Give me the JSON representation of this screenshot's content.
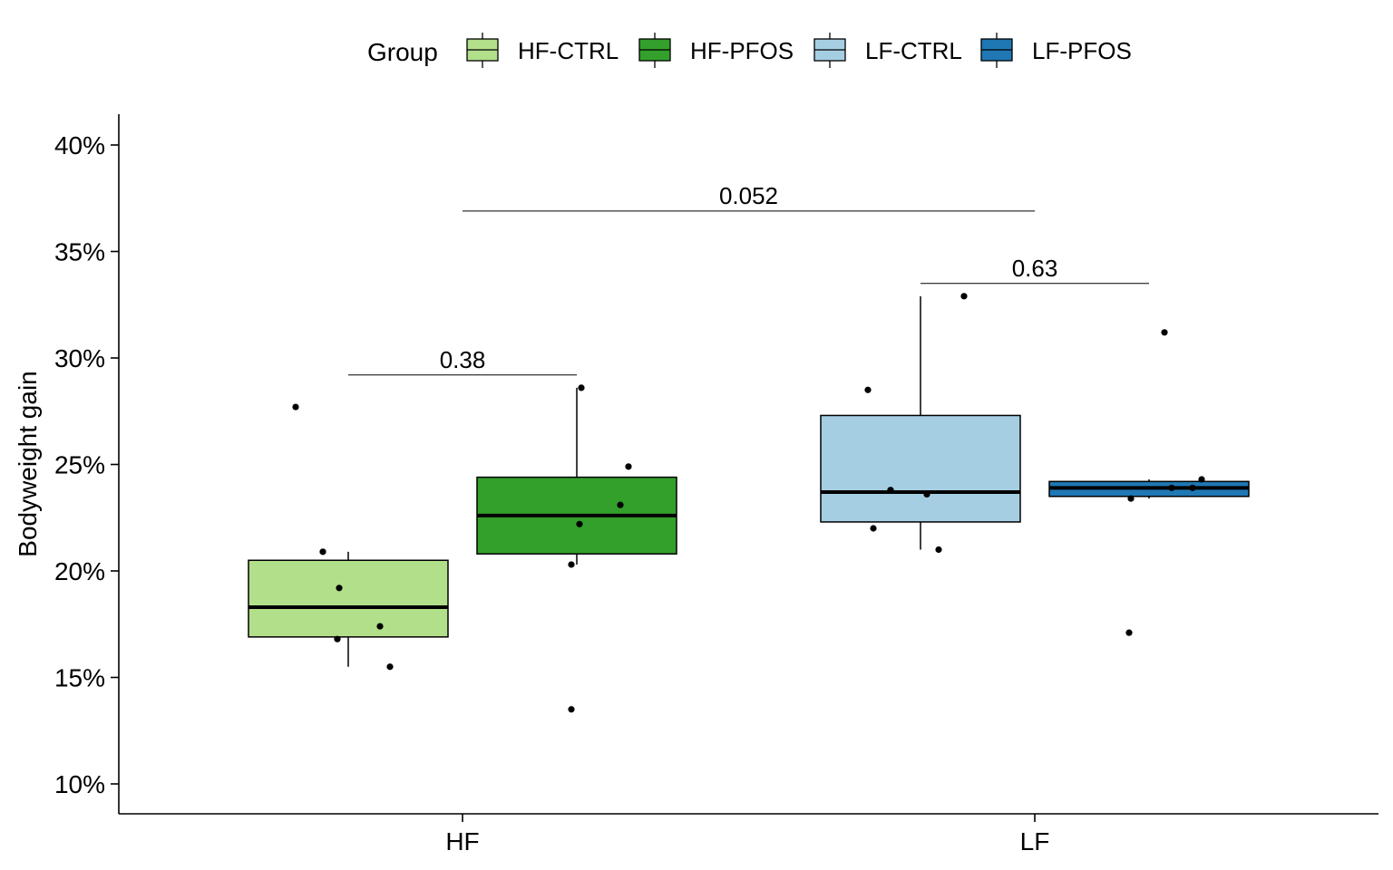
{
  "chart_data": {
    "type": "box",
    "legend": {
      "title": "Group",
      "placement": "top",
      "entries": [
        {
          "label": "HF-CTRL",
          "color": "#b2df8a"
        },
        {
          "label": "HF-PFOS",
          "color": "#33a02c"
        },
        {
          "label": "LF-CTRL",
          "color": "#a6cee3"
        },
        {
          "label": "LF-PFOS",
          "color": "#1f78b4"
        }
      ]
    },
    "xlabel": "",
    "ylabel": "Bodyweight gain",
    "categories": [
      "HF",
      "LF"
    ],
    "ylim": [
      0.085,
      0.415
    ],
    "yticks": [
      0.1,
      0.15,
      0.2,
      0.25,
      0.3,
      0.35,
      0.4
    ],
    "ytick_labels": [
      "10%",
      "15%",
      "20%",
      "25%",
      "30%",
      "35%",
      "40%"
    ],
    "grid": false,
    "series": [
      {
        "name": "HF-CTRL",
        "category": "HF",
        "color": "#b2df8a",
        "box": {
          "min": 0.155,
          "q1": 0.169,
          "median": 0.183,
          "q3": 0.205,
          "max": 0.209
        },
        "points": [
          0.277,
          0.209,
          0.192,
          0.174,
          0.168,
          0.155
        ]
      },
      {
        "name": "HF-PFOS",
        "category": "HF",
        "color": "#33a02c",
        "box": {
          "min": 0.203,
          "q1": 0.208,
          "median": 0.226,
          "q3": 0.244,
          "max": 0.286
        },
        "points": [
          0.286,
          0.249,
          0.231,
          0.222,
          0.203,
          0.135
        ]
      },
      {
        "name": "LF-CTRL",
        "category": "LF",
        "color": "#a6cee3",
        "box": {
          "min": 0.21,
          "q1": 0.223,
          "median": 0.237,
          "q3": 0.273,
          "max": 0.329
        },
        "points": [
          0.329,
          0.285,
          0.238,
          0.236,
          0.22,
          0.21
        ]
      },
      {
        "name": "LF-PFOS",
        "category": "LF",
        "color": "#1f78b4",
        "box": {
          "min": 0.234,
          "q1": 0.235,
          "median": 0.239,
          "q3": 0.242,
          "max": 0.243
        },
        "points": [
          0.312,
          0.243,
          0.239,
          0.239,
          0.234,
          0.171
        ]
      }
    ],
    "annotations": [
      {
        "label": "0.38",
        "from": "HF-CTRL",
        "to": "HF-PFOS",
        "y": 0.292
      },
      {
        "label": "0.052",
        "from": "HF",
        "to": "LF",
        "y": 0.369
      },
      {
        "label": "0.63",
        "from": "LF-CTRL",
        "to": "LF-PFOS",
        "y": 0.335
      }
    ]
  }
}
